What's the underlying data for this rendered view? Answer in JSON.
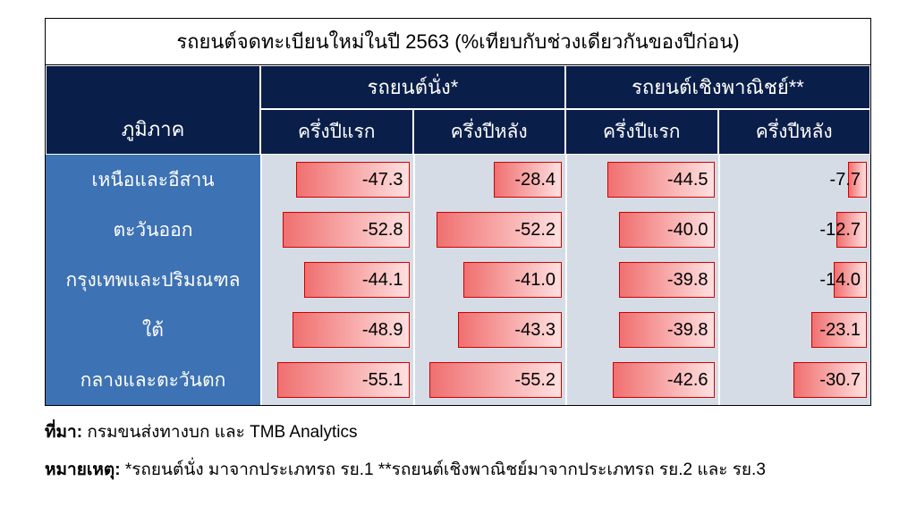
{
  "title": "รถยนต์จดทะเบียนใหม่ในปี 2563 (%เทียบกับช่วงเดียวกันของปีก่อน)",
  "colors": {
    "header_bg": "#0a1e4a",
    "rowlabel_bg": "#3d72b4",
    "body_bg": "#d6dce6",
    "bar_border": "#d00000",
    "bar_grad_from": "#f07070",
    "bar_grad_to": "#ffe0e0",
    "text_on_bar": "#000000",
    "border_white": "#ffffff"
  },
  "headers": {
    "region": "ภูมิภาค",
    "group1": "รถยนต์นั่ง*",
    "group2": "รถยนต์เชิงพาณิชย์**",
    "sub1": "ครึ่งปีแรก",
    "sub2": "ครึ่งปีหลัง",
    "sub3": "ครึ่งปีแรก",
    "sub4": "ครึ่งปีหลัง"
  },
  "bar_scale_max": 60,
  "rows": [
    {
      "label": "เหนือและอีสาน",
      "v": [
        -47.3,
        -28.4,
        -44.5,
        -7.7
      ]
    },
    {
      "label": "ตะวันออก",
      "v": [
        -52.8,
        -52.2,
        -40.0,
        -12.7
      ]
    },
    {
      "label": "กรุงเทพและปริมณฑล",
      "v": [
        -44.1,
        -41.0,
        -39.8,
        -14.0
      ]
    },
    {
      "label": "ใต้",
      "v": [
        -48.9,
        -43.3,
        -39.8,
        -23.1
      ]
    },
    {
      "label": "กลางและตะวันตก",
      "v": [
        -55.1,
        -55.2,
        -42.6,
        -30.7
      ]
    }
  ],
  "footer": {
    "source_label": "ที่มา:",
    "source_text": " กรมขนส่งทางบก และ TMB Analytics",
    "note_label": "หมายเหตุ:",
    "note_text": " *รถยนต์นั่ง มาจากประเภทรถ รย.1 **รถยนต์เชิงพาณิชย์มาจากประเภทรถ รย.2 และ รย.3"
  }
}
